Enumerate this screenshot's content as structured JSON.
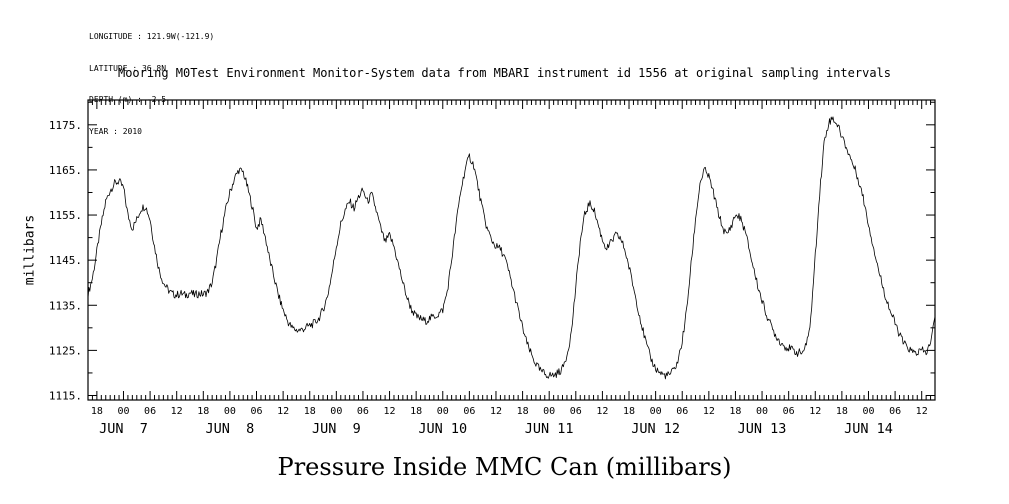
{
  "meta": {
    "lines": [
      "LONGITUDE : 121.9W(-121.9)",
      "LATITUDE : 36.8N",
      "DEPTH (m) : -2.5",
      "YEAR : 2010"
    ]
  },
  "title": "Mooring M0Test Environment Monitor-System data from MBARI instrument id 1556 at original sampling intervals",
  "bottom_title": "Pressure Inside MMC Can (millibars)",
  "chart_data": {
    "type": "line",
    "title": "Pressure Inside MMC Can (millibars)",
    "ylabel": "millibars",
    "xlabel": "",
    "grid": false,
    "legend": false,
    "ylim": [
      1114,
      1180.5
    ],
    "xlim_hours": [
      0,
      191
    ],
    "x_units": "hours from 2010-06-06 16:00",
    "y_ticks": [
      1115,
      1125,
      1135,
      1145,
      1155,
      1165,
      1175
    ],
    "y_tick_labels": [
      "1115.",
      "1125.",
      "1135.",
      "1145.",
      "1155.",
      "1165.",
      "1175."
    ],
    "y_minor_step": 5,
    "x_tick_first_hour": 2,
    "x_tick_step_hours": 6,
    "x_minor_step_hours": 1,
    "x_tick_labels": [
      "18",
      "00",
      "06",
      "12",
      "18",
      "00",
      "06",
      "12",
      "18",
      "00",
      "06",
      "12",
      "18",
      "00",
      "06",
      "12",
      "18",
      "00",
      "06",
      "12",
      "18",
      "00",
      "06",
      "12",
      "18",
      "00",
      "06",
      "12",
      "18",
      "00",
      "06",
      "12"
    ],
    "date_labels": [
      "JUN  7",
      "JUN  8",
      "JUN  9",
      "JUN 10",
      "JUN 11",
      "JUN 12",
      "JUN 13",
      "JUN 14"
    ],
    "date_label_hours": [
      8,
      32,
      56,
      80,
      104,
      128,
      152,
      176
    ],
    "noise_mb": 0.9,
    "series": [
      {
        "name": "pressure_millibars",
        "start": "2010-06-06 16:00",
        "step_hours": 1,
        "values": [
          1137.5,
          1141,
          1147,
          1153,
          1158,
          1160.5,
          1162,
          1162.5,
          1161,
          1155,
          1152,
          1154,
          1156.5,
          1157,
          1154,
          1148,
          1143,
          1140,
          1138.5,
          1137.5,
          1137.3,
          1137.6,
          1137.2,
          1137.8,
          1137.3,
          1137.6,
          1137.4,
          1138,
          1140,
          1145,
          1151,
          1156,
          1160,
          1163,
          1165,
          1164.5,
          1161,
          1157,
          1152,
          1154,
          1150,
          1145,
          1141,
          1137,
          1134,
          1131.5,
          1130,
          1129.5,
          1129.5,
          1130,
          1130.5,
          1131,
          1132,
          1134,
          1137,
          1142,
          1148,
          1153,
          1156,
          1158,
          1156.5,
          1159,
          1160.5,
          1158,
          1159.5,
          1156,
          1152,
          1149,
          1150.5,
          1148,
          1144,
          1140,
          1136.5,
          1134,
          1132.5,
          1132,
          1131.5,
          1132,
          1132.5,
          1133,
          1134,
          1138,
          1145,
          1153,
          1160,
          1165,
          1168,
          1166,
          1161,
          1156,
          1152,
          1149.5,
          1148,
          1147.5,
          1145.5,
          1142,
          1138,
          1134,
          1130,
          1126.5,
          1124,
          1122,
          1120.5,
          1119.8,
          1119.5,
          1119.5,
          1120,
          1121,
          1124,
          1129,
          1139,
          1149,
          1155,
          1157.5,
          1156.5,
          1153,
          1149.5,
          1147.5,
          1149,
          1150.5,
          1150,
          1147.5,
          1143.5,
          1139,
          1134.5,
          1130,
          1126,
          1123,
          1121,
          1120,
          1119.5,
          1119.5,
          1120.5,
          1122.5,
          1127,
          1134,
          1144,
          1154,
          1162,
          1165,
          1163.5,
          1160,
          1156,
          1152.5,
          1150.5,
          1152.5,
          1155,
          1154.5,
          1152,
          1148,
          1143.5,
          1139.5,
          1136,
          1133,
          1130.5,
          1128.5,
          1127,
          1126,
          1125.5,
          1125,
          1124.5,
          1124.5,
          1126,
          1132,
          1146,
          1160,
          1171,
          1175.5,
          1176.5,
          1175,
          1172.5,
          1170,
          1167.5,
          1165,
          1162,
          1158,
          1153,
          1148.5,
          1144,
          1140,
          1136.5,
          1133.5,
          1131,
          1128.5,
          1126.5,
          1125.5,
          1124.5,
          1124.5,
          1125,
          1124.5,
          1126.5,
          1132.5
        ]
      }
    ]
  }
}
